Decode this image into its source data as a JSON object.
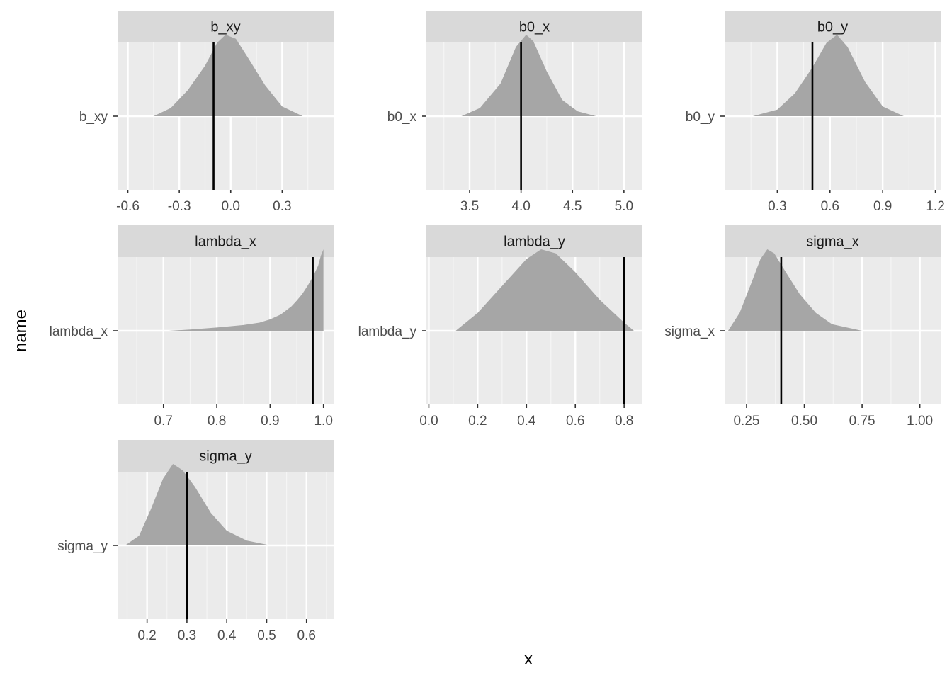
{
  "figure": {
    "xlabel": "x",
    "ylabel": "name"
  },
  "colors": {
    "panel_bg": "#ebebeb",
    "strip_bg": "#d9d9d9",
    "grid_major": "#ffffff",
    "grid_minor": "#f5f5f5",
    "density_fill": "#a6a6a6",
    "vline": "#000000",
    "tick": "#333333"
  },
  "chart_data": [
    {
      "type": "area",
      "title": "b_xy",
      "y_category": "b_xy",
      "xlim": [
        -0.66,
        0.6
      ],
      "xticks": [
        -0.6,
        -0.3,
        0.0,
        0.3
      ],
      "xtick_labels": [
        "-0.6",
        "-0.3",
        "0.0",
        "0.3"
      ],
      "vline": -0.1,
      "density": {
        "x": [
          -0.45,
          -0.35,
          -0.25,
          -0.15,
          -0.08,
          -0.03,
          0.03,
          0.1,
          0.2,
          0.3,
          0.42
        ],
        "y": [
          0.0,
          0.1,
          0.32,
          0.62,
          0.9,
          1.0,
          0.95,
          0.72,
          0.38,
          0.12,
          0.0
        ]
      }
    },
    {
      "type": "area",
      "title": "b0_x",
      "y_category": "b0_x",
      "xlim": [
        3.08,
        5.18
      ],
      "xticks": [
        3.5,
        4.0,
        4.5,
        5.0
      ],
      "xtick_labels": [
        "3.5",
        "4.0",
        "4.5",
        "5.0"
      ],
      "vline": 4.0,
      "density": {
        "x": [
          3.42,
          3.6,
          3.8,
          3.95,
          4.05,
          4.12,
          4.25,
          4.4,
          4.55,
          4.73
        ],
        "y": [
          0.0,
          0.1,
          0.4,
          0.85,
          1.0,
          0.92,
          0.55,
          0.2,
          0.06,
          0.0
        ]
      }
    },
    {
      "type": "area",
      "title": "b0_y",
      "y_category": "b0_y",
      "xlim": [
        0.0,
        1.23
      ],
      "xticks": [
        0.3,
        0.6,
        0.9,
        1.2
      ],
      "xtick_labels": [
        "0.3",
        "0.6",
        "0.9",
        "1.2"
      ],
      "vline": 0.5,
      "density": {
        "x": [
          0.16,
          0.3,
          0.4,
          0.5,
          0.58,
          0.64,
          0.7,
          0.8,
          0.9,
          1.02
        ],
        "y": [
          0.0,
          0.08,
          0.28,
          0.6,
          0.9,
          1.0,
          0.85,
          0.42,
          0.12,
          0.0
        ]
      }
    },
    {
      "type": "area",
      "title": "lambda_x",
      "y_category": "lambda_x",
      "xlim": [
        0.614,
        1.019
      ],
      "xticks": [
        0.7,
        0.8,
        0.9,
        1.0
      ],
      "xtick_labels": [
        "0.7",
        "0.8",
        "0.9",
        "1.0"
      ],
      "vline": 0.98,
      "density": {
        "x": [
          0.71,
          0.75,
          0.8,
          0.85,
          0.88,
          0.9,
          0.92,
          0.94,
          0.95,
          0.96,
          0.97,
          0.98,
          0.99,
          0.995,
          1.0
        ],
        "y": [
          0.0,
          0.015,
          0.04,
          0.07,
          0.1,
          0.14,
          0.2,
          0.3,
          0.37,
          0.45,
          0.55,
          0.66,
          0.8,
          0.92,
          1.0
        ]
      }
    },
    {
      "type": "area",
      "title": "lambda_y",
      "y_category": "lambda_y",
      "xlim": [
        -0.01,
        0.875
      ],
      "xticks": [
        0.0,
        0.2,
        0.4,
        0.6,
        0.8
      ],
      "xtick_labels": [
        "0.0",
        "0.2",
        "0.4",
        "0.6",
        "0.8"
      ],
      "vline": 0.8,
      "density": {
        "x": [
          0.11,
          0.2,
          0.3,
          0.4,
          0.46,
          0.52,
          0.6,
          0.7,
          0.8,
          0.84
        ],
        "y": [
          0.0,
          0.22,
          0.55,
          0.88,
          1.0,
          0.95,
          0.72,
          0.38,
          0.1,
          0.0
        ]
      }
    },
    {
      "type": "area",
      "title": "sigma_x",
      "y_category": "sigma_x",
      "xlim": [
        0.155,
        1.09
      ],
      "xticks": [
        0.25,
        0.5,
        0.75,
        1.0
      ],
      "xtick_labels": [
        "0.25",
        "0.50",
        "0.75",
        "1.00"
      ],
      "vline": 0.4,
      "density": {
        "x": [
          0.17,
          0.22,
          0.27,
          0.31,
          0.34,
          0.37,
          0.42,
          0.48,
          0.55,
          0.62,
          0.75
        ],
        "y": [
          0.0,
          0.22,
          0.58,
          0.88,
          1.0,
          0.95,
          0.72,
          0.45,
          0.22,
          0.08,
          0.0
        ]
      }
    },
    {
      "type": "area",
      "title": "sigma_y",
      "y_category": "sigma_y",
      "xlim": [
        0.126,
        0.668
      ],
      "xticks": [
        0.2,
        0.3,
        0.4,
        0.5,
        0.6
      ],
      "xtick_labels": [
        "0.2",
        "0.3",
        "0.4",
        "0.5",
        "0.6"
      ],
      "vline": 0.3,
      "density": {
        "x": [
          0.145,
          0.18,
          0.21,
          0.24,
          0.265,
          0.29,
          0.32,
          0.36,
          0.4,
          0.45,
          0.51
        ],
        "y": [
          0.0,
          0.12,
          0.45,
          0.82,
          1.0,
          0.92,
          0.72,
          0.4,
          0.18,
          0.06,
          0.0
        ]
      }
    }
  ]
}
